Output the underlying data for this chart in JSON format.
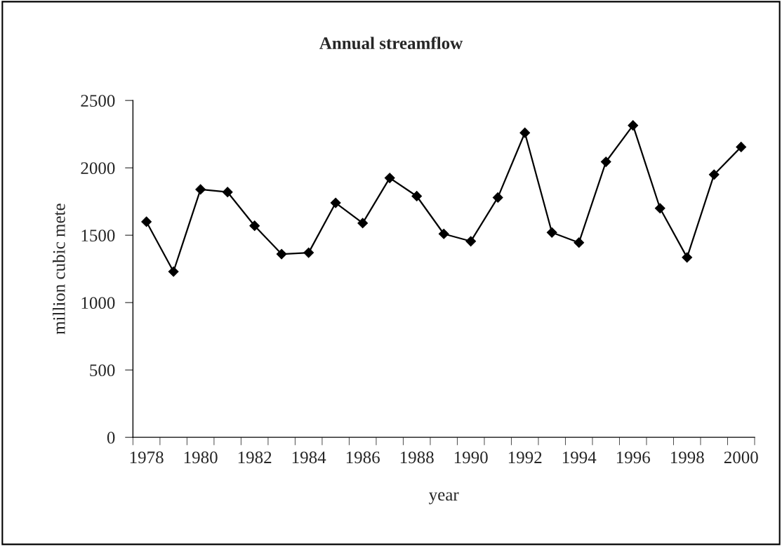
{
  "chart_data": {
    "type": "line",
    "title": "Annual streamflow",
    "xlabel": "year",
    "ylabel": "million cubic mete",
    "categories": [
      "1978",
      null,
      "1980",
      null,
      "1982",
      null,
      "1984",
      null,
      "1986",
      null,
      "1988",
      null,
      "1990",
      null,
      "1992",
      null,
      "1994",
      null,
      "1996",
      null,
      "1998",
      null,
      "2000"
    ],
    "series": [
      {
        "color": "#000000",
        "values": [
          1600,
          1230,
          1840,
          1820,
          1570,
          1360,
          1370,
          1740,
          1590,
          1925,
          1790,
          1510,
          1455,
          1780,
          2260,
          1520,
          1445,
          2045,
          2315,
          1700,
          1335,
          1950,
          2155
        ]
      }
    ],
    "ylim": [
      0,
      2500
    ],
    "yticks": [
      0,
      500,
      1000,
      1500,
      2000,
      2500
    ],
    "grid": false,
    "marker": "diamond",
    "line_style": "solid"
  }
}
